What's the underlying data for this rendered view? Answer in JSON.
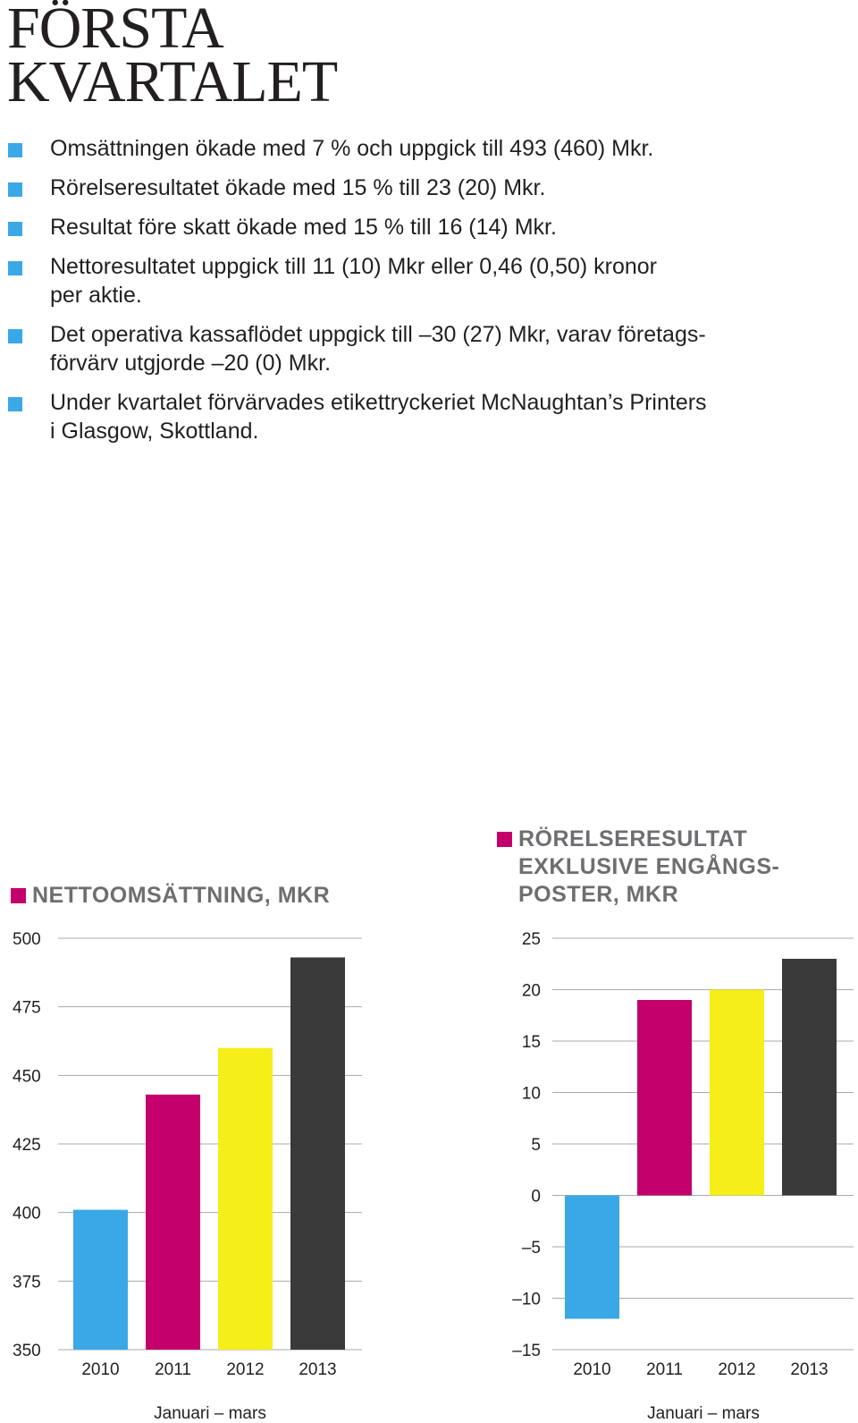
{
  "page": {
    "title_lines": [
      "FÖRSTA",
      "KVARTALET"
    ],
    "bullets": [
      {
        "lines": [
          "Omsättningen ökade med 7 % och uppgick till 493 (460) Mkr."
        ]
      },
      {
        "lines": [
          "Rörelseresultatet ökade med 15 % till 23 (20) Mkr."
        ]
      },
      {
        "lines": [
          "Resultat före skatt ökade med 15 % till 16 (14) Mkr."
        ]
      },
      {
        "lines": [
          "Nettoresultatet uppgick till 11 (10) Mkr eller 0,46 (0,50) kronor",
          "per aktie."
        ]
      },
      {
        "lines": [
          "Det operativa kassaflödet uppgick till –30 (27) Mkr, varav företags-",
          "förvärv utgjorde –20 (0) Mkr."
        ]
      },
      {
        "lines": [
          "Under kvartalet förvärvades etikettryckeriet McNaughtan’s Printers",
          "i Glasgow, Skottland."
        ]
      }
    ],
    "colors": {
      "bullet_marker": "#3aa8e6",
      "heading_marker": "#c3006b",
      "heading_text": "#6d6e71",
      "gridline": "#a7a9ac",
      "bars": [
        "#3aa8e6",
        "#c3006b",
        "#f5ee19",
        "#3a3a3a"
      ]
    }
  },
  "chart_data": [
    {
      "type": "bar",
      "title": "NETTOOMSÄTTNING, MKR",
      "title_lines": [
        "NETTOOMSÄTTNING, MKR"
      ],
      "categories": [
        "2010",
        "2011",
        "2012",
        "2013"
      ],
      "values": [
        401,
        443,
        460,
        493
      ],
      "xlabel": "Januari – mars",
      "ylim": [
        350,
        500
      ],
      "yticks": [
        500,
        475,
        450,
        425,
        400,
        375,
        350
      ],
      "ytick_labels": [
        "500",
        "475",
        "450",
        "425",
        "400",
        "375",
        "350"
      ],
      "grid": true
    },
    {
      "type": "bar",
      "title": "RÖRELSERESULTAT EXKLUSIVE ENGÅNGS-POSTER, MKR",
      "title_lines": [
        "RÖRELSERESULTAT",
        "EXKLUSIVE ENGÅNGS-",
        "POSTER, MKR"
      ],
      "categories": [
        "2010",
        "2011",
        "2012",
        "2013"
      ],
      "values": [
        -12,
        19,
        20,
        23
      ],
      "xlabel": "Januari – mars",
      "ylim": [
        -15,
        25
      ],
      "yticks": [
        25,
        20,
        15,
        10,
        5,
        0,
        -5,
        -10,
        -15
      ],
      "ytick_labels": [
        "25",
        "20",
        "15",
        "10",
        "5",
        "0",
        "–5",
        "–10",
        "–15"
      ],
      "grid": true
    }
  ]
}
